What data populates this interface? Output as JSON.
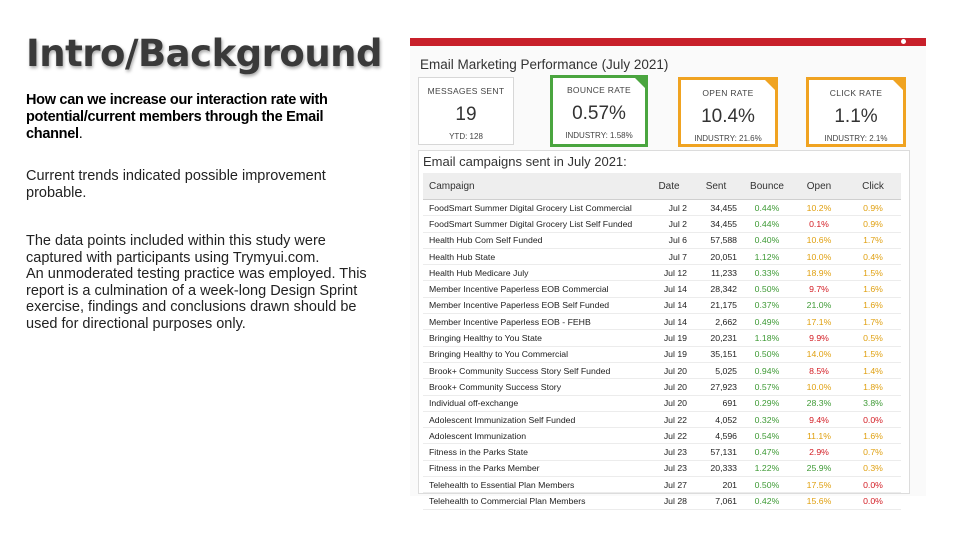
{
  "slide": {
    "title": "Intro/Background",
    "question_main": "How can we increase our interaction rate with potential/current members through the Email channel",
    "question_end": ".",
    "para1": "Current trends indicated possible improvement probable.",
    "para2_line1": "The data points included within this study were captured with participants using Trymyui.com.",
    "para2_line2": "An unmoderated testing practice was employed. This report is a culmination of a week-long Design Sprint exercise, findings and conclusions drawn should be used for directional purposes only."
  },
  "dashboard": {
    "title": "Email Marketing Performance (July 2021)",
    "accent_red": "#c8202a",
    "kpis": [
      {
        "label": "MESSAGES SENT",
        "value": "19",
        "sub": "YTD: 128"
      },
      {
        "label": "BOUNCE RATE",
        "value": "0.57%",
        "sub": "INDUSTRY: 1.58%",
        "status": "#4aa53f"
      },
      {
        "label": "OPEN RATE",
        "value": "10.4%",
        "sub": "INDUSTRY: 21.6%",
        "status": "#f0a321"
      },
      {
        "label": "CLICK RATE",
        "value": "1.1%",
        "sub": "INDUSTRY: 2.1%",
        "status": "#f0a321"
      }
    ],
    "table_title": "Email campaigns sent in July 2021:",
    "columns": [
      "Campaign",
      "Date",
      "Sent",
      "Bounce",
      "Open",
      "Click"
    ],
    "rows": [
      {
        "campaign": "FoodSmart Summer Digital Grocery List Commercial",
        "date": "Jul 2",
        "sent": "34,455",
        "bounce": "0.44%",
        "open": "10.2%",
        "open_c": "y",
        "click": "0.9%",
        "click_c": "y"
      },
      {
        "campaign": "FoodSmart Summer Digital Grocery List Self Funded",
        "date": "Jul 2",
        "sent": "34,455",
        "bounce": "0.44%",
        "open": "0.1%",
        "open_c": "r",
        "click": "0.9%",
        "click_c": "y"
      },
      {
        "campaign": "Health Hub Com Self Funded",
        "date": "Jul 6",
        "sent": "57,588",
        "bounce": "0.40%",
        "open": "10.6%",
        "open_c": "y",
        "click": "1.7%",
        "click_c": "y"
      },
      {
        "campaign": "Health Hub State",
        "date": "Jul 7",
        "sent": "20,051",
        "bounce": "1.12%",
        "open": "10.0%",
        "open_c": "y",
        "click": "0.4%",
        "click_c": "y"
      },
      {
        "campaign": "Health Hub Medicare July",
        "date": "Jul 12",
        "sent": "11,233",
        "bounce": "0.33%",
        "open": "18.9%",
        "open_c": "y",
        "click": "1.5%",
        "click_c": "y"
      },
      {
        "campaign": "Member Incentive Paperless EOB Commercial",
        "date": "Jul 14",
        "sent": "28,342",
        "bounce": "0.50%",
        "open": "9.7%",
        "open_c": "r",
        "click": "1.6%",
        "click_c": "y"
      },
      {
        "campaign": "Member Incentive Paperless EOB Self Funded",
        "date": "Jul 14",
        "sent": "21,175",
        "bounce": "0.37%",
        "open": "21.0%",
        "open_c": "g",
        "click": "1.6%",
        "click_c": "y"
      },
      {
        "campaign": "Member Incentive Paperless EOB - FEHB",
        "date": "Jul 14",
        "sent": "2,662",
        "bounce": "0.49%",
        "open": "17.1%",
        "open_c": "y",
        "click": "1.7%",
        "click_c": "y"
      },
      {
        "campaign": "Bringing Healthy to You State",
        "date": "Jul 19",
        "sent": "20,231",
        "bounce": "1.18%",
        "open": "9.9%",
        "open_c": "r",
        "click": "0.5%",
        "click_c": "y"
      },
      {
        "campaign": "Bringing Healthy to You Commercial",
        "date": "Jul 19",
        "sent": "35,151",
        "bounce": "0.50%",
        "open": "14.0%",
        "open_c": "y",
        "click": "1.5%",
        "click_c": "y"
      },
      {
        "campaign": "Brook+ Community Success Story Self Funded",
        "date": "Jul 20",
        "sent": "5,025",
        "bounce": "0.94%",
        "open": "8.5%",
        "open_c": "r",
        "click": "1.4%",
        "click_c": "y"
      },
      {
        "campaign": "Brook+ Community Success Story",
        "date": "Jul 20",
        "sent": "27,923",
        "bounce": "0.57%",
        "open": "10.0%",
        "open_c": "y",
        "click": "1.8%",
        "click_c": "y"
      },
      {
        "campaign": "Individual off-exchange",
        "date": "Jul 20",
        "sent": "691",
        "bounce": "0.29%",
        "open": "28.3%",
        "open_c": "g",
        "click": "3.8%",
        "click_c": "g"
      },
      {
        "campaign": "Adolescent Immunization Self Funded",
        "date": "Jul 22",
        "sent": "4,052",
        "bounce": "0.32%",
        "open": "9.4%",
        "open_c": "r",
        "click": "0.0%",
        "click_c": "r"
      },
      {
        "campaign": "Adolescent Immunization",
        "date": "Jul 22",
        "sent": "4,596",
        "bounce": "0.54%",
        "open": "11.1%",
        "open_c": "y",
        "click": "1.6%",
        "click_c": "y"
      },
      {
        "campaign": "Fitness in the Parks State",
        "date": "Jul 23",
        "sent": "57,131",
        "bounce": "0.47%",
        "open": "2.9%",
        "open_c": "r",
        "click": "0.7%",
        "click_c": "y"
      },
      {
        "campaign": "Fitness in the Parks Member",
        "date": "Jul 23",
        "sent": "20,333",
        "bounce": "1.22%",
        "open": "25.9%",
        "open_c": "g",
        "click": "0.3%",
        "click_c": "y"
      },
      {
        "campaign": "Telehealth to Essential Plan Members",
        "date": "Jul 27",
        "sent": "201",
        "bounce": "0.50%",
        "open": "17.5%",
        "open_c": "y",
        "click": "0.0%",
        "click_c": "r"
      },
      {
        "campaign": "Telehealth to Commercial Plan Members",
        "date": "Jul 28",
        "sent": "7,061",
        "bounce": "0.42%",
        "open": "15.6%",
        "open_c": "y",
        "click": "0.0%",
        "click_c": "r"
      }
    ]
  }
}
